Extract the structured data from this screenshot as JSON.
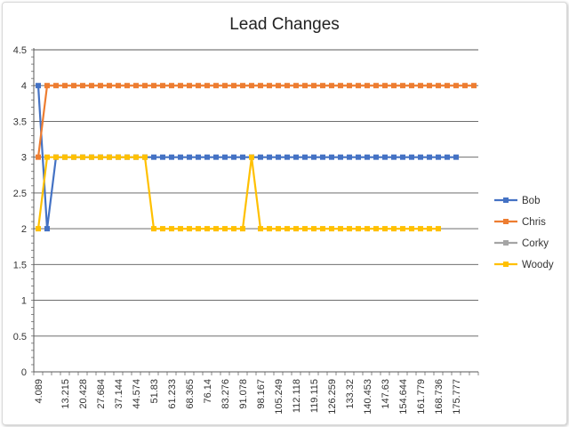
{
  "chart_data": {
    "type": "line",
    "title": "Lead Changes",
    "xlabel": "",
    "ylabel": "",
    "ylim": [
      0,
      4.5
    ],
    "yticks": [
      "0",
      "0.5",
      "1",
      "1.5",
      "2",
      "2.5",
      "3",
      "3.5",
      "4",
      "4.5"
    ],
    "x_tick_labels": [
      "4.089",
      "13.215",
      "20.428",
      "27.684",
      "37.144",
      "44.574",
      "51.83",
      "61.233",
      "68.365",
      "76.14",
      "83.276",
      "91.078",
      "98.167",
      "105.249",
      "112.118",
      "119.115",
      "126.259",
      "133.32",
      "140.453",
      "147.63",
      "154.644",
      "161.779",
      "168.736",
      "175.777"
    ],
    "grid": true,
    "legend_position": "right",
    "series": [
      {
        "name": "Bob",
        "color": "#4472C4",
        "values": [
          4,
          2,
          3,
          3,
          3,
          3,
          3,
          3,
          3,
          3,
          3,
          3,
          3,
          3,
          3,
          3,
          3,
          3,
          3,
          3,
          3,
          3,
          3,
          3,
          3,
          3,
          3,
          3,
          3,
          3,
          3,
          3,
          3,
          3,
          3,
          3,
          3,
          3,
          3,
          3,
          3,
          3,
          3,
          3,
          3,
          3,
          3,
          3
        ]
      },
      {
        "name": "Chris",
        "color": "#ED7D31",
        "values": [
          3,
          4,
          4,
          4,
          4,
          4,
          4,
          4,
          4,
          4,
          4,
          4,
          4,
          4,
          4,
          4,
          4,
          4,
          4,
          4,
          4,
          4,
          4,
          4,
          4,
          4,
          4,
          4,
          4,
          4,
          4,
          4,
          4,
          4,
          4,
          4,
          4,
          4,
          4,
          4,
          4,
          4,
          4,
          4,
          4,
          4,
          4,
          4,
          4,
          4
        ]
      },
      {
        "name": "Corky",
        "color": "#A5A5A5",
        "values": []
      },
      {
        "name": "Woody",
        "color": "#FFC000",
        "values": [
          2,
          3,
          3,
          3,
          3,
          3,
          3,
          3,
          3,
          3,
          3,
          3,
          3,
          2,
          2,
          2,
          2,
          2,
          2,
          2,
          2,
          2,
          2,
          2,
          3,
          2,
          2,
          2,
          2,
          2,
          2,
          2,
          2,
          2,
          2,
          2,
          2,
          2,
          2,
          2,
          2,
          2,
          2,
          2,
          2,
          2
        ]
      }
    ]
  }
}
